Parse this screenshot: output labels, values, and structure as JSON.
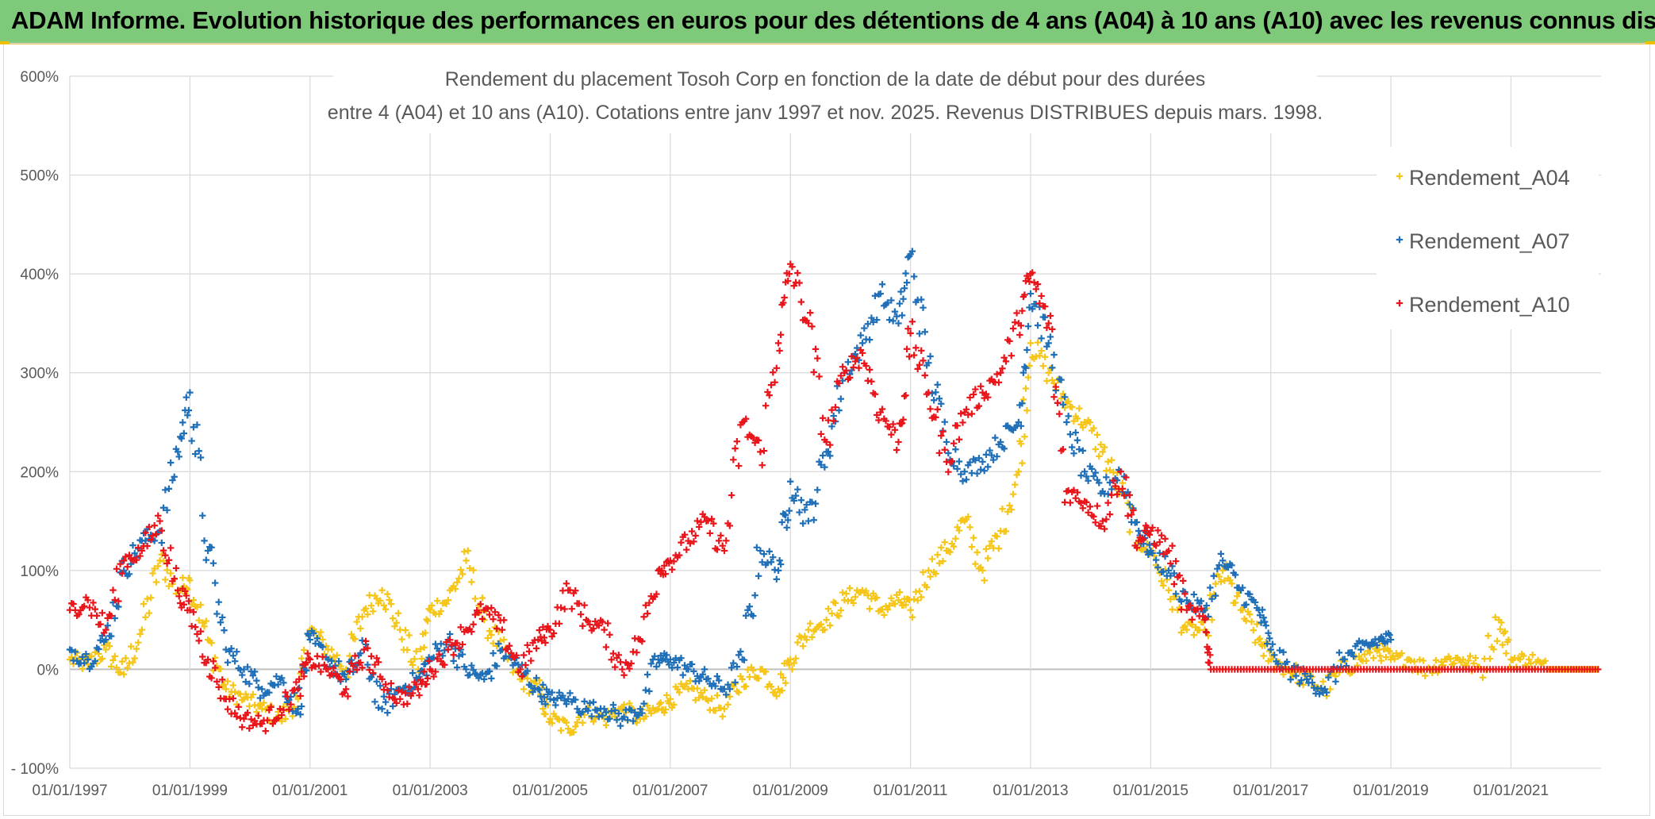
{
  "header": {
    "banner_text": "ADAM Informe. Evolution historique des performances en euros pour des détentions de 4 ans (A04) à 10 ans (A10) avec les revenus connus distribués",
    "banner_color": "#7fc97a"
  },
  "chart_data": {
    "type": "scatter",
    "title_line1": "Rendement du placement Tosoh Corp en fonction de la date de début pour des durées",
    "title_line2": "entre 4 (A04) et 10 ans (A10). Cotations entre janv 1997 et nov. 2025. Revenus DISTRIBUES depuis mars. 1998.",
    "xlabel": "",
    "ylabel": "",
    "xlim": [
      1997.0,
      2022.5
    ],
    "ylim": [
      -100,
      600
    ],
    "grid": true,
    "legend_position": "top-right",
    "x_ticks": [
      "01/01/1997",
      "01/01/1999",
      "01/01/2001",
      "01/01/2003",
      "01/01/2005",
      "01/01/2007",
      "01/01/2009",
      "01/01/2011",
      "01/01/2013",
      "01/01/2015",
      "01/01/2017",
      "01/01/2019",
      "01/01/2021"
    ],
    "x_tick_values": [
      1997,
      1999,
      2001,
      2003,
      2005,
      2007,
      2009,
      2011,
      2013,
      2015,
      2017,
      2019,
      2021
    ],
    "y_ticks": [
      "- 100%",
      "0%",
      "100%",
      "200%",
      "300%",
      "400%",
      "500%",
      "600%"
    ],
    "y_tick_values": [
      -100,
      0,
      100,
      200,
      300,
      400,
      500,
      600
    ],
    "series": [
      {
        "name": "Rendement_A04",
        "color": "#f5c518",
        "x": [
          1997.0,
          1997.3,
          1997.6,
          1997.9,
          1998.2,
          1998.5,
          1998.8,
          1999.0,
          1999.3,
          1999.6,
          1999.9,
          2000.2,
          2000.5,
          2000.8,
          2001.0,
          2001.3,
          2001.6,
          2001.9,
          2002.2,
          2002.5,
          2002.8,
          2003.0,
          2003.3,
          2003.6,
          2003.9,
          2004.2,
          2004.5,
          2004.8,
          2005.0,
          2005.3,
          2005.6,
          2005.9,
          2006.2,
          2006.5,
          2006.8,
          2007.0,
          2007.3,
          2007.6,
          2007.9,
          2008.2,
          2008.5,
          2008.8,
          2009.0,
          2009.3,
          2009.6,
          2009.9,
          2010.2,
          2010.5,
          2010.8,
          2011.0,
          2011.3,
          2011.6,
          2011.9,
          2012.2,
          2012.5,
          2012.8,
          2013.0,
          2013.3,
          2013.6,
          2013.9,
          2014.2,
          2014.5,
          2014.8,
          2015.0,
          2015.3,
          2015.6,
          2015.9,
          2016.2,
          2016.5,
          2016.8,
          2017.0,
          2017.3,
          2017.6,
          2017.9,
          2018.2,
          2018.5,
          2018.8,
          2019.0,
          2019.3,
          2019.6,
          2019.9,
          2020.2,
          2020.5,
          2020.8,
          2021.0,
          2021.3,
          2021.6,
          2021.9,
          2022.2,
          2022.45
        ],
        "values": [
          10,
          5,
          20,
          -5,
          40,
          110,
          80,
          90,
          30,
          -20,
          -30,
          -40,
          -50,
          -30,
          40,
          20,
          0,
          60,
          80,
          40,
          0,
          60,
          70,
          110,
          50,
          20,
          -10,
          -20,
          -50,
          -60,
          -40,
          -50,
          -40,
          -50,
          -40,
          -30,
          -20,
          -30,
          -40,
          -10,
          0,
          -20,
          10,
          40,
          50,
          70,
          80,
          60,
          70,
          60,
          100,
          120,
          150,
          100,
          140,
          200,
          330,
          300,
          270,
          250,
          220,
          180,
          130,
          120,
          80,
          40,
          40,
          100,
          60,
          30,
          10,
          0,
          -10,
          -20,
          0,
          10,
          20,
          10,
          10,
          0,
          10,
          10,
          0,
          50,
          10,
          10,
          0,
          0,
          0,
          0
        ]
      },
      {
        "name": "Rendement_A07",
        "color": "#1f6fb8",
        "x": [
          1997.0,
          1997.3,
          1997.6,
          1997.9,
          1998.2,
          1998.5,
          1998.8,
          1999.0,
          1999.3,
          1999.6,
          1999.9,
          2000.2,
          2000.5,
          2000.8,
          2001.0,
          2001.3,
          2001.6,
          2001.9,
          2002.2,
          2002.5,
          2002.8,
          2003.0,
          2003.3,
          2003.6,
          2003.9,
          2004.2,
          2004.5,
          2004.8,
          2005.0,
          2005.3,
          2005.6,
          2005.9,
          2006.2,
          2006.5,
          2006.8,
          2007.0,
          2007.3,
          2007.6,
          2007.9,
          2008.2,
          2008.5,
          2008.8,
          2009.0,
          2009.3,
          2009.6,
          2009.9,
          2010.2,
          2010.5,
          2010.8,
          2011.0,
          2011.3,
          2011.6,
          2011.9,
          2012.2,
          2012.5,
          2012.8,
          2013.0,
          2013.3,
          2013.6,
          2013.9,
          2014.2,
          2014.5,
          2014.8,
          2015.0,
          2015.3,
          2015.6,
          2015.9,
          2016.2,
          2016.5,
          2016.8,
          2017.0,
          2017.3,
          2017.6,
          2017.9,
          2018.2,
          2018.5,
          2018.8,
          2019.0
        ],
        "values": [
          20,
          10,
          30,
          100,
          130,
          140,
          220,
          280,
          120,
          20,
          0,
          -20,
          -10,
          -40,
          30,
          10,
          -10,
          20,
          -40,
          -20,
          -10,
          10,
          30,
          0,
          -10,
          20,
          0,
          -20,
          -30,
          -30,
          -40,
          -40,
          -50,
          -40,
          10,
          10,
          0,
          -10,
          -20,
          10,
          120,
          100,
          190,
          150,
          220,
          300,
          330,
          380,
          350,
          420,
          310,
          230,
          200,
          210,
          230,
          250,
          380,
          330,
          250,
          200,
          180,
          200,
          140,
          120,
          100,
          70,
          60,
          110,
          80,
          60,
          20,
          0,
          -10,
          -20,
          10,
          20,
          30,
          30
        ]
      },
      {
        "name": "Rendement_A10",
        "color": "#e8151b",
        "x": [
          1997.0,
          1997.3,
          1997.6,
          1997.9,
          1998.2,
          1998.5,
          1998.8,
          1999.0,
          1999.3,
          1999.6,
          1999.9,
          2000.2,
          2000.5,
          2000.8,
          2001.0,
          2001.3,
          2001.6,
          2001.9,
          2002.2,
          2002.5,
          2002.8,
          2003.0,
          2003.3,
          2003.6,
          2003.9,
          2004.2,
          2004.5,
          2004.8,
          2005.0,
          2005.3,
          2005.6,
          2005.9,
          2006.2,
          2006.5,
          2006.8,
          2007.0,
          2007.3,
          2007.6,
          2007.9,
          2008.2,
          2008.5,
          2008.8,
          2009.0,
          2009.3,
          2009.6,
          2009.9,
          2010.2,
          2010.5,
          2010.8,
          2011.0,
          2011.3,
          2011.6,
          2011.9,
          2012.2,
          2012.5,
          2012.8,
          2013.0,
          2013.3,
          2013.6,
          2013.9,
          2014.2,
          2014.5,
          2014.8,
          2015.0,
          2015.3,
          2015.6,
          2015.9,
          2016.0,
          2016.5,
          2017.0,
          2017.5,
          2018.0,
          2018.5,
          2019.0,
          2019.5,
          2020.0,
          2020.5,
          2021.0,
          2021.5,
          2022.0,
          2022.45
        ],
        "values": [
          60,
          70,
          40,
          110,
          120,
          150,
          80,
          60,
          10,
          -30,
          -50,
          -55,
          -40,
          -20,
          10,
          0,
          -20,
          20,
          -10,
          -30,
          -20,
          0,
          20,
          40,
          60,
          40,
          0,
          30,
          40,
          80,
          50,
          40,
          0,
          30,
          100,
          110,
          130,
          150,
          120,
          250,
          220,
          330,
          410,
          350,
          230,
          300,
          320,
          260,
          230,
          340,
          280,
          210,
          260,
          280,
          300,
          350,
          400,
          350,
          180,
          170,
          150,
          200,
          130,
          140,
          120,
          60,
          50,
          0,
          0,
          0,
          0,
          0,
          0,
          0,
          0,
          0,
          0,
          0,
          0,
          0,
          0
        ]
      }
    ]
  }
}
